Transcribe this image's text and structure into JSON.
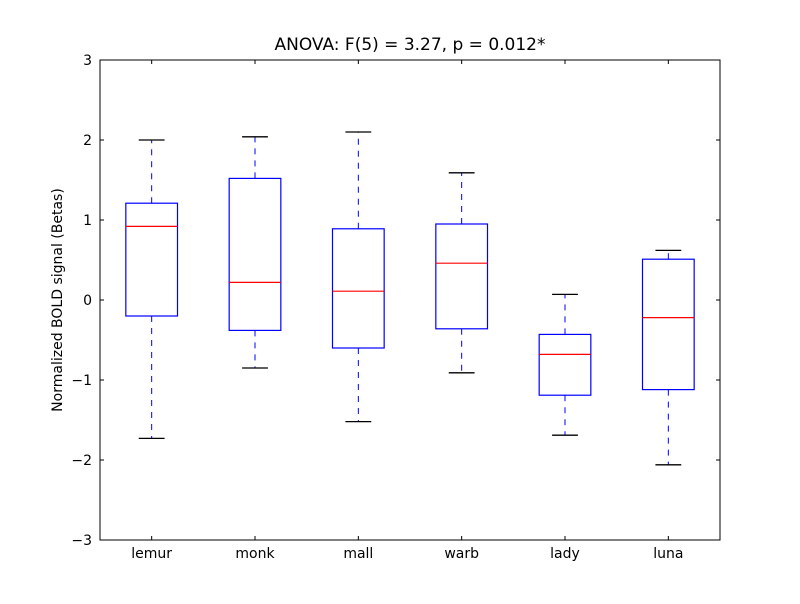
{
  "chart_data": {
    "type": "boxplot",
    "title": "ANOVA: F(5) = 3.27, p = 0.012*",
    "xlabel": "",
    "ylabel": "Normalized BOLD signal (Betas)",
    "ylim": [
      -3,
      3
    ],
    "yticks": [
      "3",
      "2",
      "1",
      "0",
      "−1",
      "−2",
      "−3"
    ],
    "ytick_values": [
      3,
      2,
      1,
      0,
      -1,
      -2,
      -3
    ],
    "grid": false,
    "categories": [
      "lemur",
      "monk",
      "mall",
      "warb",
      "lady",
      "luna"
    ],
    "boxes": [
      {
        "whisker_low": -1.73,
        "q1": -0.2,
        "median": 0.92,
        "q3": 1.21,
        "whisker_high": 2.0
      },
      {
        "whisker_low": -0.85,
        "q1": -0.38,
        "median": 0.22,
        "q3": 1.52,
        "whisker_high": 2.04
      },
      {
        "whisker_low": -1.52,
        "q1": -0.6,
        "median": 0.11,
        "q3": 0.89,
        "whisker_high": 2.1
      },
      {
        "whisker_low": -0.91,
        "q1": -0.36,
        "median": 0.46,
        "q3": 0.95,
        "whisker_high": 1.59
      },
      {
        "whisker_low": -1.69,
        "q1": -1.19,
        "median": -0.68,
        "q3": -0.43,
        "whisker_high": 0.07
      },
      {
        "whisker_low": -2.06,
        "q1": -1.12,
        "median": -0.22,
        "q3": 0.51,
        "whisker_high": 0.62
      }
    ],
    "colors": {
      "box": "#0000ff",
      "median": "#ff0000",
      "cap": "#000000"
    }
  }
}
